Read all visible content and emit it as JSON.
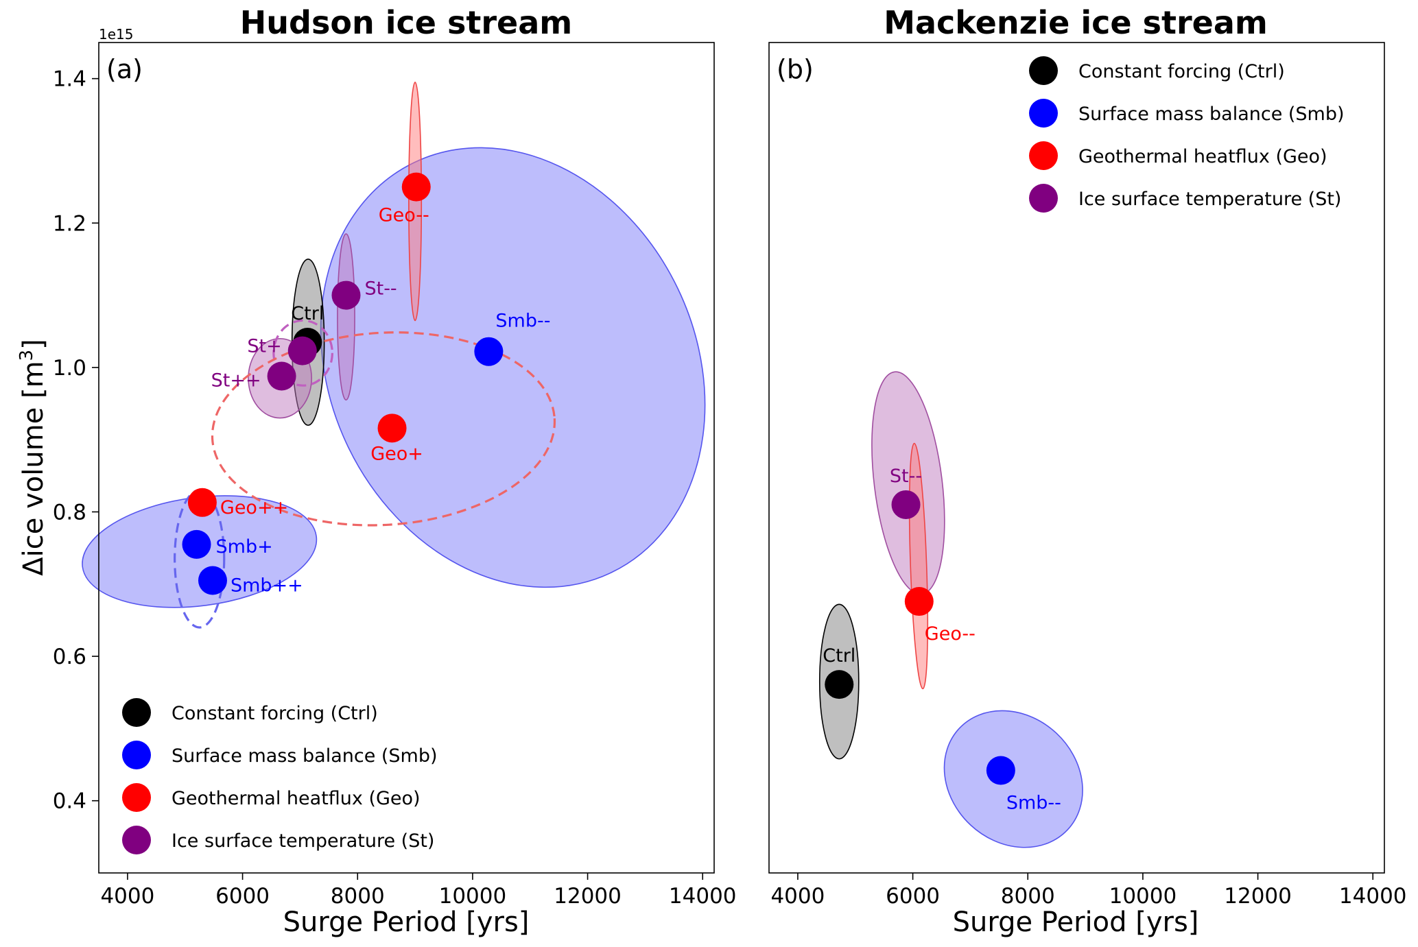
{
  "figure": {
    "background": "#ffffff"
  },
  "chart_data": [
    {
      "type": "scatter",
      "panel_label": "(a)",
      "title": "Hudson ice stream",
      "xlabel": "Surge Period [yrs]",
      "ylabel_prefix": "Δice volume [m",
      "ylabel_exp": "3",
      "ylabel_suffix": "]",
      "offset_text": "1e15",
      "xlim": [
        3500,
        14200
      ],
      "ylim": [
        0.3,
        1.45
      ],
      "xticks": [
        4000,
        6000,
        8000,
        10000,
        12000,
        14000
      ],
      "yticks": [
        0.4,
        0.6,
        0.8,
        1.0,
        1.2,
        1.4
      ],
      "ytick_labels": [
        "0.4",
        "0.6",
        "0.8",
        "1.0",
        "1.2",
        "1.4"
      ],
      "legend": {
        "position": "lower-left",
        "entries": [
          {
            "label": "Constant forcing (Ctrl)",
            "color": "#000000"
          },
          {
            "label": "Surface mass balance (Smb)",
            "color": "#0000ff"
          },
          {
            "label": "Geothermal heatflux (Geo)",
            "color": "#ff0000"
          },
          {
            "label": "Ice surface temperature (St)",
            "color": "#800080"
          }
        ]
      },
      "ellipses": [
        {
          "group": "Smb",
          "cx": 10700,
          "cy": 1.0,
          "rx": 3180,
          "ry": 0.315,
          "angle": -25.7,
          "fill": "#7b7bfa",
          "stroke": "#5555ee",
          "opacity": 0.5,
          "dashed": false
        },
        {
          "group": "Smb",
          "cx": 5250,
          "cy": 0.745,
          "rx": 2050,
          "ry": 0.075,
          "angle": -7.5,
          "fill": "#7b7bfa",
          "stroke": "#5555ee",
          "opacity": 0.5,
          "dashed": false
        },
        {
          "group": "Geo",
          "cx": 9000,
          "cy": 1.23,
          "rx": 110,
          "ry": 0.165,
          "angle": 0,
          "fill": "#ff7b7b",
          "stroke": "#ee4444",
          "opacity": 0.5,
          "dashed": false
        },
        {
          "group": "Ctrl",
          "cx": 7140,
          "cy": 1.035,
          "rx": 280,
          "ry": 0.115,
          "angle": 0,
          "fill": "#808080",
          "stroke": "#000000",
          "opacity": 0.5,
          "dashed": false
        },
        {
          "group": "St",
          "cx": 7800,
          "cy": 1.07,
          "rx": 150,
          "ry": 0.115,
          "angle": 0,
          "fill": "#c07bc0",
          "stroke": "#a04ea0",
          "opacity": 0.5,
          "dashed": false
        },
        {
          "group": "St",
          "cx": 6650,
          "cy": 0.985,
          "rx": 550,
          "ry": 0.055,
          "angle": 0,
          "fill": "#c07bc0",
          "stroke": "#a04ea0",
          "opacity": 0.5,
          "dashed": false
        },
        {
          "group": "St",
          "cx": 7050,
          "cy": 1.02,
          "rx": 510,
          "ry": 0.045,
          "angle": 0,
          "fill": "none",
          "stroke": "#c060c0",
          "opacity": 1,
          "dashed": true
        },
        {
          "group": "Geo",
          "cx": 8450,
          "cy": 0.915,
          "rx": 2980,
          "ry": 0.133,
          "angle": -3.5,
          "fill": "none",
          "stroke": "#ee6666",
          "opacity": 1,
          "dashed": true
        },
        {
          "group": "Smb",
          "cx": 5250,
          "cy": 0.735,
          "rx": 430,
          "ry": 0.095,
          "angle": 0,
          "fill": "none",
          "stroke": "#6666ee",
          "opacity": 1,
          "dashed": true
        }
      ],
      "points": [
        {
          "name": "Ctrl",
          "label": "Ctrl",
          "x": 7130,
          "y": 1.035,
          "color": "#000000",
          "label_color": "#000000",
          "label_pos": "above"
        },
        {
          "name": "Smb--",
          "label": "Smb--",
          "x": 10280,
          "y": 1.022,
          "color": "#0000ff",
          "label_color": "#0000ff",
          "label_pos": "above-right"
        },
        {
          "name": "Smb+",
          "label": "Smb+",
          "x": 5200,
          "y": 0.755,
          "color": "#0000ff",
          "label_color": "#0000ff",
          "label_pos": "right"
        },
        {
          "name": "Smb++",
          "label": "Smb++",
          "x": 5480,
          "y": 0.705,
          "color": "#0000ff",
          "label_color": "#0000ff",
          "label_pos": "right-below"
        },
        {
          "name": "Geo--",
          "label": "Geo--",
          "x": 9020,
          "y": 1.25,
          "color": "#ff0000",
          "label_color": "#ff0000",
          "label_pos": "below-left"
        },
        {
          "name": "Geo+",
          "label": "Geo+",
          "x": 8600,
          "y": 0.916,
          "color": "#ff0000",
          "label_color": "#ff0000",
          "label_pos": "below"
        },
        {
          "name": "Geo++",
          "label": "Geo++",
          "x": 5300,
          "y": 0.813,
          "color": "#ff0000",
          "label_color": "#ff0000",
          "label_pos": "right-below"
        },
        {
          "name": "St--",
          "label": "St--",
          "x": 7800,
          "y": 1.1,
          "color": "#800080",
          "label_color": "#800080",
          "label_pos": "right-up"
        },
        {
          "name": "St+",
          "label": "St+",
          "x": 7040,
          "y": 1.023,
          "color": "#800080",
          "label_color": "#800080",
          "label_pos": "left-up"
        },
        {
          "name": "St++",
          "label": "St++",
          "x": 6680,
          "y": 0.988,
          "color": "#800080",
          "label_color": "#800080",
          "label_pos": "left"
        }
      ]
    },
    {
      "type": "scatter",
      "panel_label": "(b)",
      "title": "Mackenzie ice stream",
      "xlabel": "Surge Period [yrs]",
      "xlim": [
        3500,
        14200
      ],
      "ylim": [
        0.3,
        1.45
      ],
      "xticks": [
        4000,
        6000,
        8000,
        10000,
        12000,
        14000
      ],
      "yticks": [],
      "legend": {
        "position": "upper-right",
        "entries": [
          {
            "label": "Constant forcing (Ctrl)",
            "color": "#000000"
          },
          {
            "label": "Surface mass balance (Smb)",
            "color": "#0000ff"
          },
          {
            "label": "Geothermal heatflux (Geo)",
            "color": "#ff0000"
          },
          {
            "label": "Ice surface temperature (St)",
            "color": "#800080"
          }
        ]
      },
      "ellipses": [
        {
          "group": "Ctrl",
          "cx": 4720,
          "cy": 0.565,
          "rx": 340,
          "ry": 0.107,
          "angle": 0,
          "fill": "#808080",
          "stroke": "#000000",
          "opacity": 0.5,
          "dashed": false
        },
        {
          "group": "Smb",
          "cx": 7750,
          "cy": 0.43,
          "rx": 1290,
          "ry": 0.087,
          "angle": 43,
          "fill": "#7b7bfa",
          "stroke": "#5555ee",
          "opacity": 0.5,
          "dashed": false
        },
        {
          "group": "St",
          "cx": 5920,
          "cy": 0.84,
          "rx": 590,
          "ry": 0.155,
          "angle": -7,
          "fill": "#c07bc0",
          "stroke": "#a04ea0",
          "opacity": 0.5,
          "dashed": false
        },
        {
          "group": "Geo",
          "cx": 6100,
          "cy": 0.725,
          "rx": 140,
          "ry": 0.17,
          "angle": -2,
          "fill": "#ff7b7b",
          "stroke": "#ee4444",
          "opacity": 0.5,
          "dashed": false
        }
      ],
      "points": [
        {
          "name": "Ctrl",
          "label": "Ctrl",
          "x": 4720,
          "y": 0.561,
          "color": "#000000",
          "label_color": "#000000",
          "label_pos": "above"
        },
        {
          "name": "Smb--",
          "label": "Smb--",
          "x": 7530,
          "y": 0.442,
          "color": "#0000ff",
          "label_color": "#0000ff",
          "label_pos": "below-right"
        },
        {
          "name": "St--",
          "label": "St--",
          "x": 5880,
          "y": 0.81,
          "color": "#800080",
          "label_color": "#800080",
          "label_pos": "above"
        },
        {
          "name": "Geo--",
          "label": "Geo--",
          "x": 6110,
          "y": 0.676,
          "color": "#ff0000",
          "label_color": "#ff0000",
          "label_pos": "below-right"
        }
      ]
    }
  ]
}
